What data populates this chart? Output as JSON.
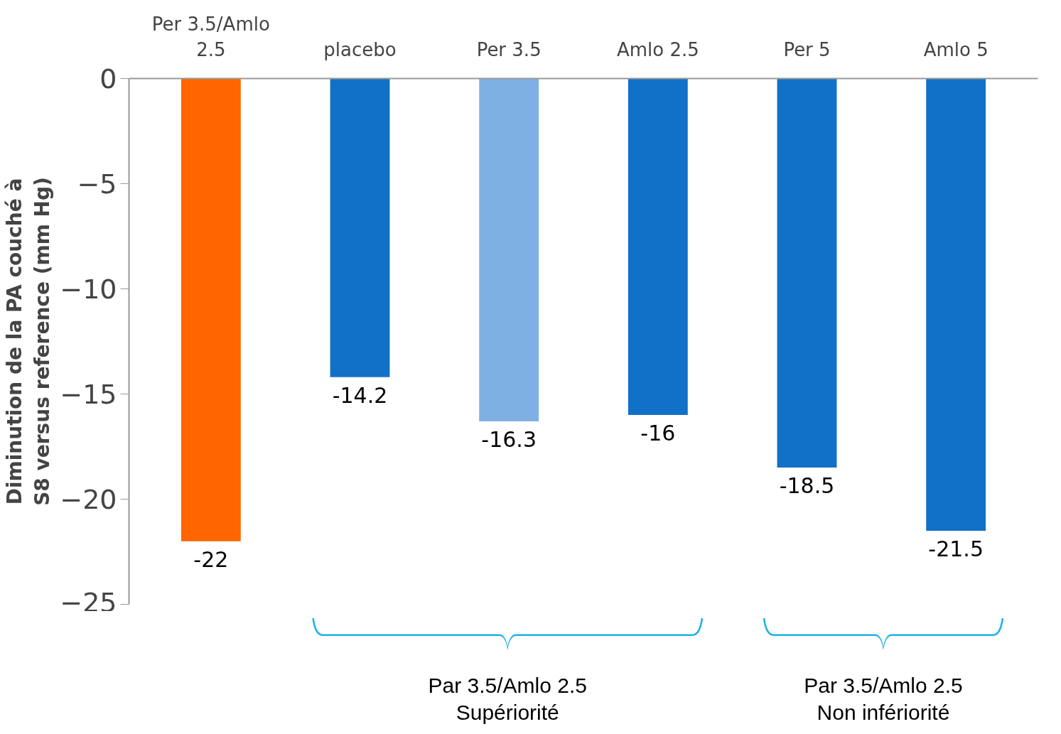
{
  "chart_data": {
    "type": "bar",
    "categories": [
      "Per 3.5/Amlo 2.5",
      "placebo",
      "Per 3.5",
      "Amlo 2.5",
      "Per 5",
      "Amlo 5"
    ],
    "values": [
      -22,
      -14.2,
      -16.3,
      -16,
      -18.5,
      -21.5
    ],
    "colors": [
      "#ff6600",
      "#1170c8",
      "#7fb0e3",
      "#1170c8",
      "#1170c8",
      "#1170c8"
    ],
    "ylabel": "Diminution de la PA couché à S8 versus reference (mm Hg)",
    "ylim": [
      -25,
      0
    ],
    "yticks": [
      0,
      -5,
      -10,
      -15,
      -20,
      -25
    ],
    "data_labels": true,
    "grid": false,
    "annotations": [
      "Par 3.5/Amlo 2.5 Supériorité",
      "Par 3.5/Amlo 2.5 Non infériorité"
    ]
  }
}
